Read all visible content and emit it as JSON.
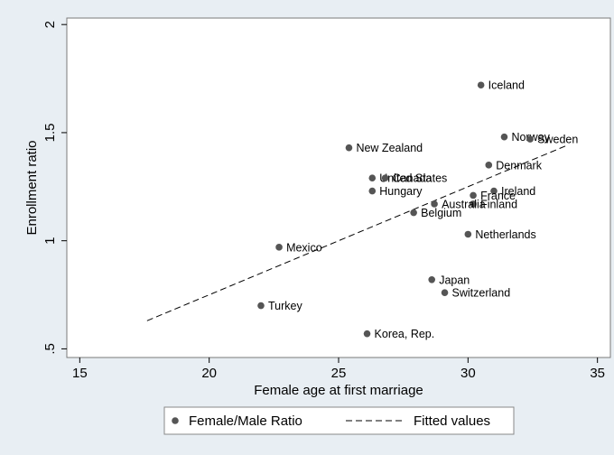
{
  "chart_data": {
    "type": "scatter",
    "xlabel": "Female age at first marriage",
    "ylabel": "Enrollment ratio",
    "xlim": [
      14.5,
      35.5
    ],
    "ylim": [
      0.46,
      2.03
    ],
    "xticks": [
      15,
      20,
      25,
      30,
      35
    ],
    "yticks": [
      0.5,
      1,
      1.5,
      2
    ],
    "ytick_labels": [
      ".5",
      "1",
      "1.5",
      "2"
    ],
    "grid": false,
    "legend_position": "bottom",
    "legend": {
      "scatter_label": "Female/Male Ratio",
      "fit_label": "Fitted values"
    },
    "colors": {
      "point": "#555555",
      "fit_line": "#000000",
      "background": "#e8eef3",
      "plot_background": "#ffffff"
    },
    "series": [
      {
        "name": "Female/Male Ratio",
        "kind": "points",
        "points": [
          {
            "label": "Iceland",
            "x": 30.5,
            "y": 1.72
          },
          {
            "label": "Norway",
            "x": 31.4,
            "y": 1.48
          },
          {
            "label": "Sweden",
            "x": 32.4,
            "y": 1.47
          },
          {
            "label": "New Zealand",
            "x": 25.4,
            "y": 1.43
          },
          {
            "label": "Denmark",
            "x": 30.8,
            "y": 1.35
          },
          {
            "label": "United States",
            "x": 26.3,
            "y": 1.29
          },
          {
            "label": "Canada",
            "x": 26.8,
            "y": 1.29
          },
          {
            "label": "Hungary",
            "x": 26.3,
            "y": 1.23
          },
          {
            "label": "Ireland",
            "x": 31.0,
            "y": 1.23
          },
          {
            "label": "France",
            "x": 30.2,
            "y": 1.21
          },
          {
            "label": "Finland",
            "x": 30.2,
            "y": 1.17
          },
          {
            "label": "Australia",
            "x": 28.7,
            "y": 1.17
          },
          {
            "label": "Belgium",
            "x": 27.9,
            "y": 1.13
          },
          {
            "label": "Netherlands",
            "x": 30.0,
            "y": 1.03
          },
          {
            "label": "Mexico",
            "x": 22.7,
            "y": 0.97
          },
          {
            "label": "Japan",
            "x": 28.6,
            "y": 0.82
          },
          {
            "label": "Switzerland",
            "x": 29.1,
            "y": 0.76
          },
          {
            "label": "Turkey",
            "x": 22.0,
            "y": 0.7
          },
          {
            "label": "Korea, Rep.",
            "x": 26.1,
            "y": 0.57
          }
        ]
      },
      {
        "name": "Fitted values",
        "kind": "line",
        "x": [
          17.6,
          33.8
        ],
        "y": [
          0.63,
          1.44
        ]
      }
    ]
  }
}
